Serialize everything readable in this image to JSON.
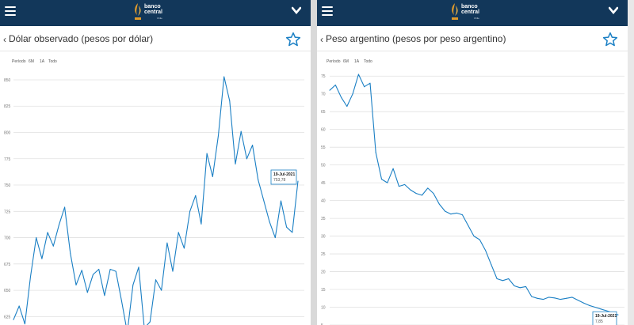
{
  "app": {
    "logo_line1": "banco",
    "logo_line2": "central",
    "logo_sub": "Chile"
  },
  "colors": {
    "header": "#12375a",
    "accent": "#1a7fc4",
    "logo_gold": "#e09a2a"
  },
  "icons": {
    "menu": "hamburger-menu-icon",
    "dropdown": "chevron-down-icon",
    "back": "back-arrow-icon",
    "favorite": "star-outline-icon"
  },
  "screens": [
    {
      "title": "Dólar observado (pesos por dólar)",
      "back_label": "‹",
      "period_label": "Período",
      "periods": [
        "6M",
        "1A",
        "Todo"
      ],
      "tooltip": {
        "date": "19-Jul-2021",
        "value": "753,78"
      }
    },
    {
      "title": "Peso argentino (pesos por peso argentino)",
      "back_label": "‹",
      "period_label": "Período",
      "periods": [
        "6M",
        "1A",
        "Todo"
      ],
      "tooltip": {
        "date": "19-Jul-2021",
        "value": "7,85"
      }
    }
  ],
  "chart_data": [
    {
      "type": "line",
      "title": "Dólar observado (pesos por dólar)",
      "y_ticks": [
        850,
        825,
        800,
        775,
        750,
        725,
        700,
        675,
        650,
        625
      ],
      "ylim": [
        617,
        862
      ],
      "grid": true,
      "series": [
        {
          "x": [
            0,
            2,
            4,
            6,
            8,
            10,
            12,
            14,
            16,
            18,
            20,
            22,
            24,
            26,
            28,
            30,
            32,
            34,
            36,
            38,
            40,
            42,
            44,
            46,
            48,
            50,
            52,
            54,
            56,
            58,
            60,
            62,
            64,
            66,
            68,
            70,
            72,
            74,
            76,
            78,
            80,
            82,
            84,
            86,
            88,
            90,
            92,
            94,
            96,
            98,
            100
          ],
          "values": [
            622,
            635,
            618,
            663,
            700,
            680,
            705,
            692,
            712,
            729,
            685,
            655,
            669,
            648,
            665,
            670,
            645,
            670,
            668,
            640,
            610,
            655,
            672,
            614,
            620,
            660,
            650,
            695,
            668,
            705,
            690,
            725,
            740,
            713,
            780,
            758,
            797,
            853,
            830,
            770,
            801,
            775,
            788,
            755,
            735,
            715,
            700,
            735,
            710,
            705,
            753.78
          ]
        }
      ]
    },
    {
      "type": "line",
      "title": "Peso argentino (pesos por peso argentino)",
      "y_ticks": [
        75,
        70,
        65,
        60,
        55,
        50,
        45,
        40,
        35,
        30,
        25,
        20,
        15,
        10,
        5
      ],
      "ylim": [
        5,
        77.5
      ],
      "grid": true,
      "series": [
        {
          "x": [
            0,
            2,
            4,
            6,
            8,
            10,
            12,
            14,
            16,
            18,
            20,
            22,
            24,
            26,
            28,
            30,
            32,
            34,
            36,
            38,
            40,
            42,
            44,
            46,
            48,
            50,
            52,
            54,
            56,
            58,
            60,
            62,
            64,
            66,
            68,
            70,
            72,
            74,
            76,
            78,
            80,
            82,
            84,
            86,
            88,
            90,
            92,
            94,
            96,
            98,
            100
          ],
          "values": [
            71,
            72.5,
            69,
            66.5,
            70,
            75.5,
            72,
            73,
            53.5,
            46,
            45,
            49,
            44,
            44.5,
            43,
            42,
            41.5,
            43.5,
            42,
            39,
            37,
            36.2,
            36.5,
            36,
            33,
            30,
            29,
            26,
            22,
            18,
            17.5,
            18,
            16,
            15.5,
            15.8,
            13,
            12.5,
            12.2,
            12.8,
            12.6,
            12.2,
            12.5,
            12.8,
            12,
            11.2,
            10.5,
            10,
            9.5,
            9,
            8.5,
            7.85
          ]
        }
      ]
    }
  ]
}
